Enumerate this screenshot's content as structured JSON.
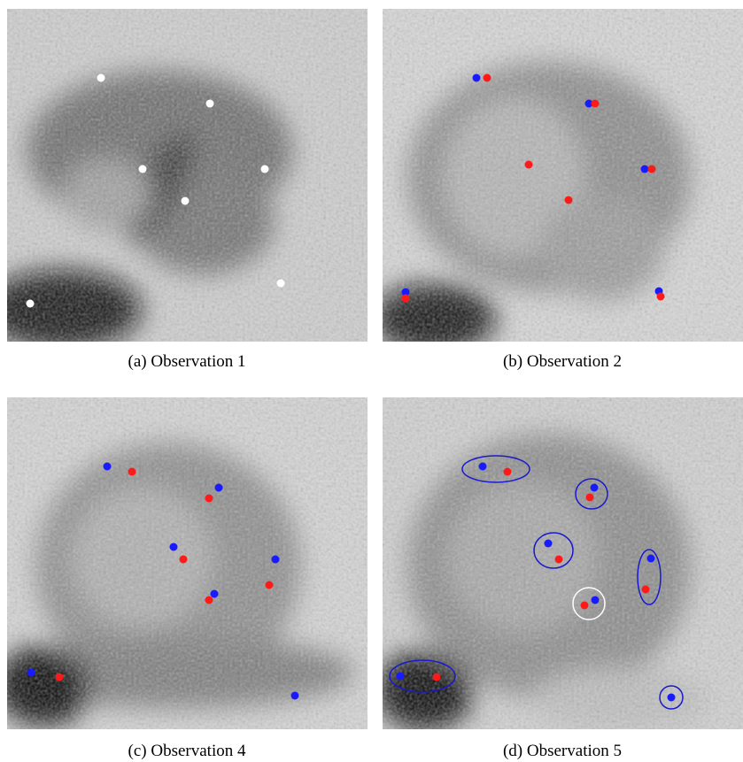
{
  "panels": [
    {
      "caption": "(a) Observation 1"
    },
    {
      "caption": "(b) Observation 2"
    },
    {
      "caption": "(c) Observation 4"
    },
    {
      "caption": "(d) Observation 5"
    }
  ]
}
